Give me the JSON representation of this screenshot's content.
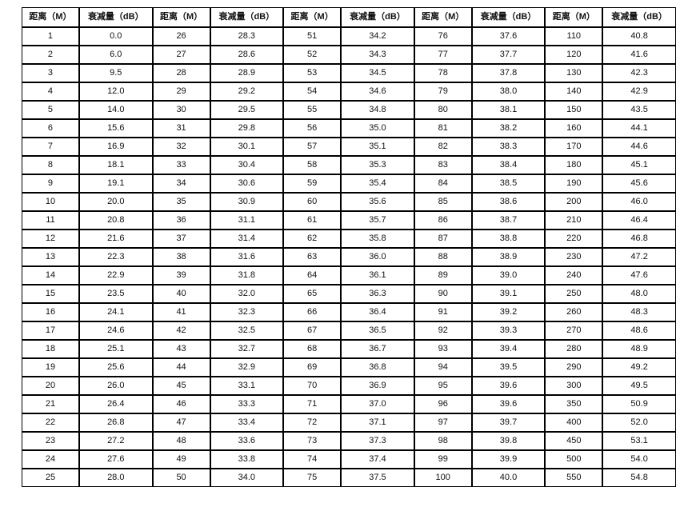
{
  "page": {
    "background": "#ffffff",
    "border_color": "#000000",
    "text_color": "#111111"
  },
  "table": {
    "column_pairs": 5,
    "headers": {
      "distance": "距离（M）",
      "attenuation": "衰减量（dB）"
    },
    "rows": [
      [
        "1",
        "0.0",
        "26",
        "28.3",
        "51",
        "34.2",
        "76",
        "37.6",
        "110",
        "40.8"
      ],
      [
        "2",
        "6.0",
        "27",
        "28.6",
        "52",
        "34.3",
        "77",
        "37.7",
        "120",
        "41.6"
      ],
      [
        "3",
        "9.5",
        "28",
        "28.9",
        "53",
        "34.5",
        "78",
        "37.8",
        "130",
        "42.3"
      ],
      [
        "4",
        "12.0",
        "29",
        "29.2",
        "54",
        "34.6",
        "79",
        "38.0",
        "140",
        "42.9"
      ],
      [
        "5",
        "14.0",
        "30",
        "29.5",
        "55",
        "34.8",
        "80",
        "38.1",
        "150",
        "43.5"
      ],
      [
        "6",
        "15.6",
        "31",
        "29.8",
        "56",
        "35.0",
        "81",
        "38.2",
        "160",
        "44.1"
      ],
      [
        "7",
        "16.9",
        "32",
        "30.1",
        "57",
        "35.1",
        "82",
        "38.3",
        "170",
        "44.6"
      ],
      [
        "8",
        "18.1",
        "33",
        "30.4",
        "58",
        "35.3",
        "83",
        "38.4",
        "180",
        "45.1"
      ],
      [
        "9",
        "19.1",
        "34",
        "30.6",
        "59",
        "35.4",
        "84",
        "38.5",
        "190",
        "45.6"
      ],
      [
        "10",
        "20.0",
        "35",
        "30.9",
        "60",
        "35.6",
        "85",
        "38.6",
        "200",
        "46.0"
      ],
      [
        "11",
        "20.8",
        "36",
        "31.1",
        "61",
        "35.7",
        "86",
        "38.7",
        "210",
        "46.4"
      ],
      [
        "12",
        "21.6",
        "37",
        "31.4",
        "62",
        "35.8",
        "87",
        "38.8",
        "220",
        "46.8"
      ],
      [
        "13",
        "22.3",
        "38",
        "31.6",
        "63",
        "36.0",
        "88",
        "38.9",
        "230",
        "47.2"
      ],
      [
        "14",
        "22.9",
        "39",
        "31.8",
        "64",
        "36.1",
        "89",
        "39.0",
        "240",
        "47.6"
      ],
      [
        "15",
        "23.5",
        "40",
        "32.0",
        "65",
        "36.3",
        "90",
        "39.1",
        "250",
        "48.0"
      ],
      [
        "16",
        "24.1",
        "41",
        "32.3",
        "66",
        "36.4",
        "91",
        "39.2",
        "260",
        "48.3"
      ],
      [
        "17",
        "24.6",
        "42",
        "32.5",
        "67",
        "36.5",
        "92",
        "39.3",
        "270",
        "48.6"
      ],
      [
        "18",
        "25.1",
        "43",
        "32.7",
        "68",
        "36.7",
        "93",
        "39.4",
        "280",
        "48.9"
      ],
      [
        "19",
        "25.6",
        "44",
        "32.9",
        "69",
        "36.8",
        "94",
        "39.5",
        "290",
        "49.2"
      ],
      [
        "20",
        "26.0",
        "45",
        "33.1",
        "70",
        "36.9",
        "95",
        "39.6",
        "300",
        "49.5"
      ],
      [
        "21",
        "26.4",
        "46",
        "33.3",
        "71",
        "37.0",
        "96",
        "39.6",
        "350",
        "50.9"
      ],
      [
        "22",
        "26.8",
        "47",
        "33.4",
        "72",
        "37.1",
        "97",
        "39.7",
        "400",
        "52.0"
      ],
      [
        "23",
        "27.2",
        "48",
        "33.6",
        "73",
        "37.3",
        "98",
        "39.8",
        "450",
        "53.1"
      ],
      [
        "24",
        "27.6",
        "49",
        "33.8",
        "74",
        "37.4",
        "99",
        "39.9",
        "500",
        "54.0"
      ],
      [
        "25",
        "28.0",
        "50",
        "34.0",
        "75",
        "37.5",
        "100",
        "40.0",
        "550",
        "54.8"
      ]
    ]
  }
}
